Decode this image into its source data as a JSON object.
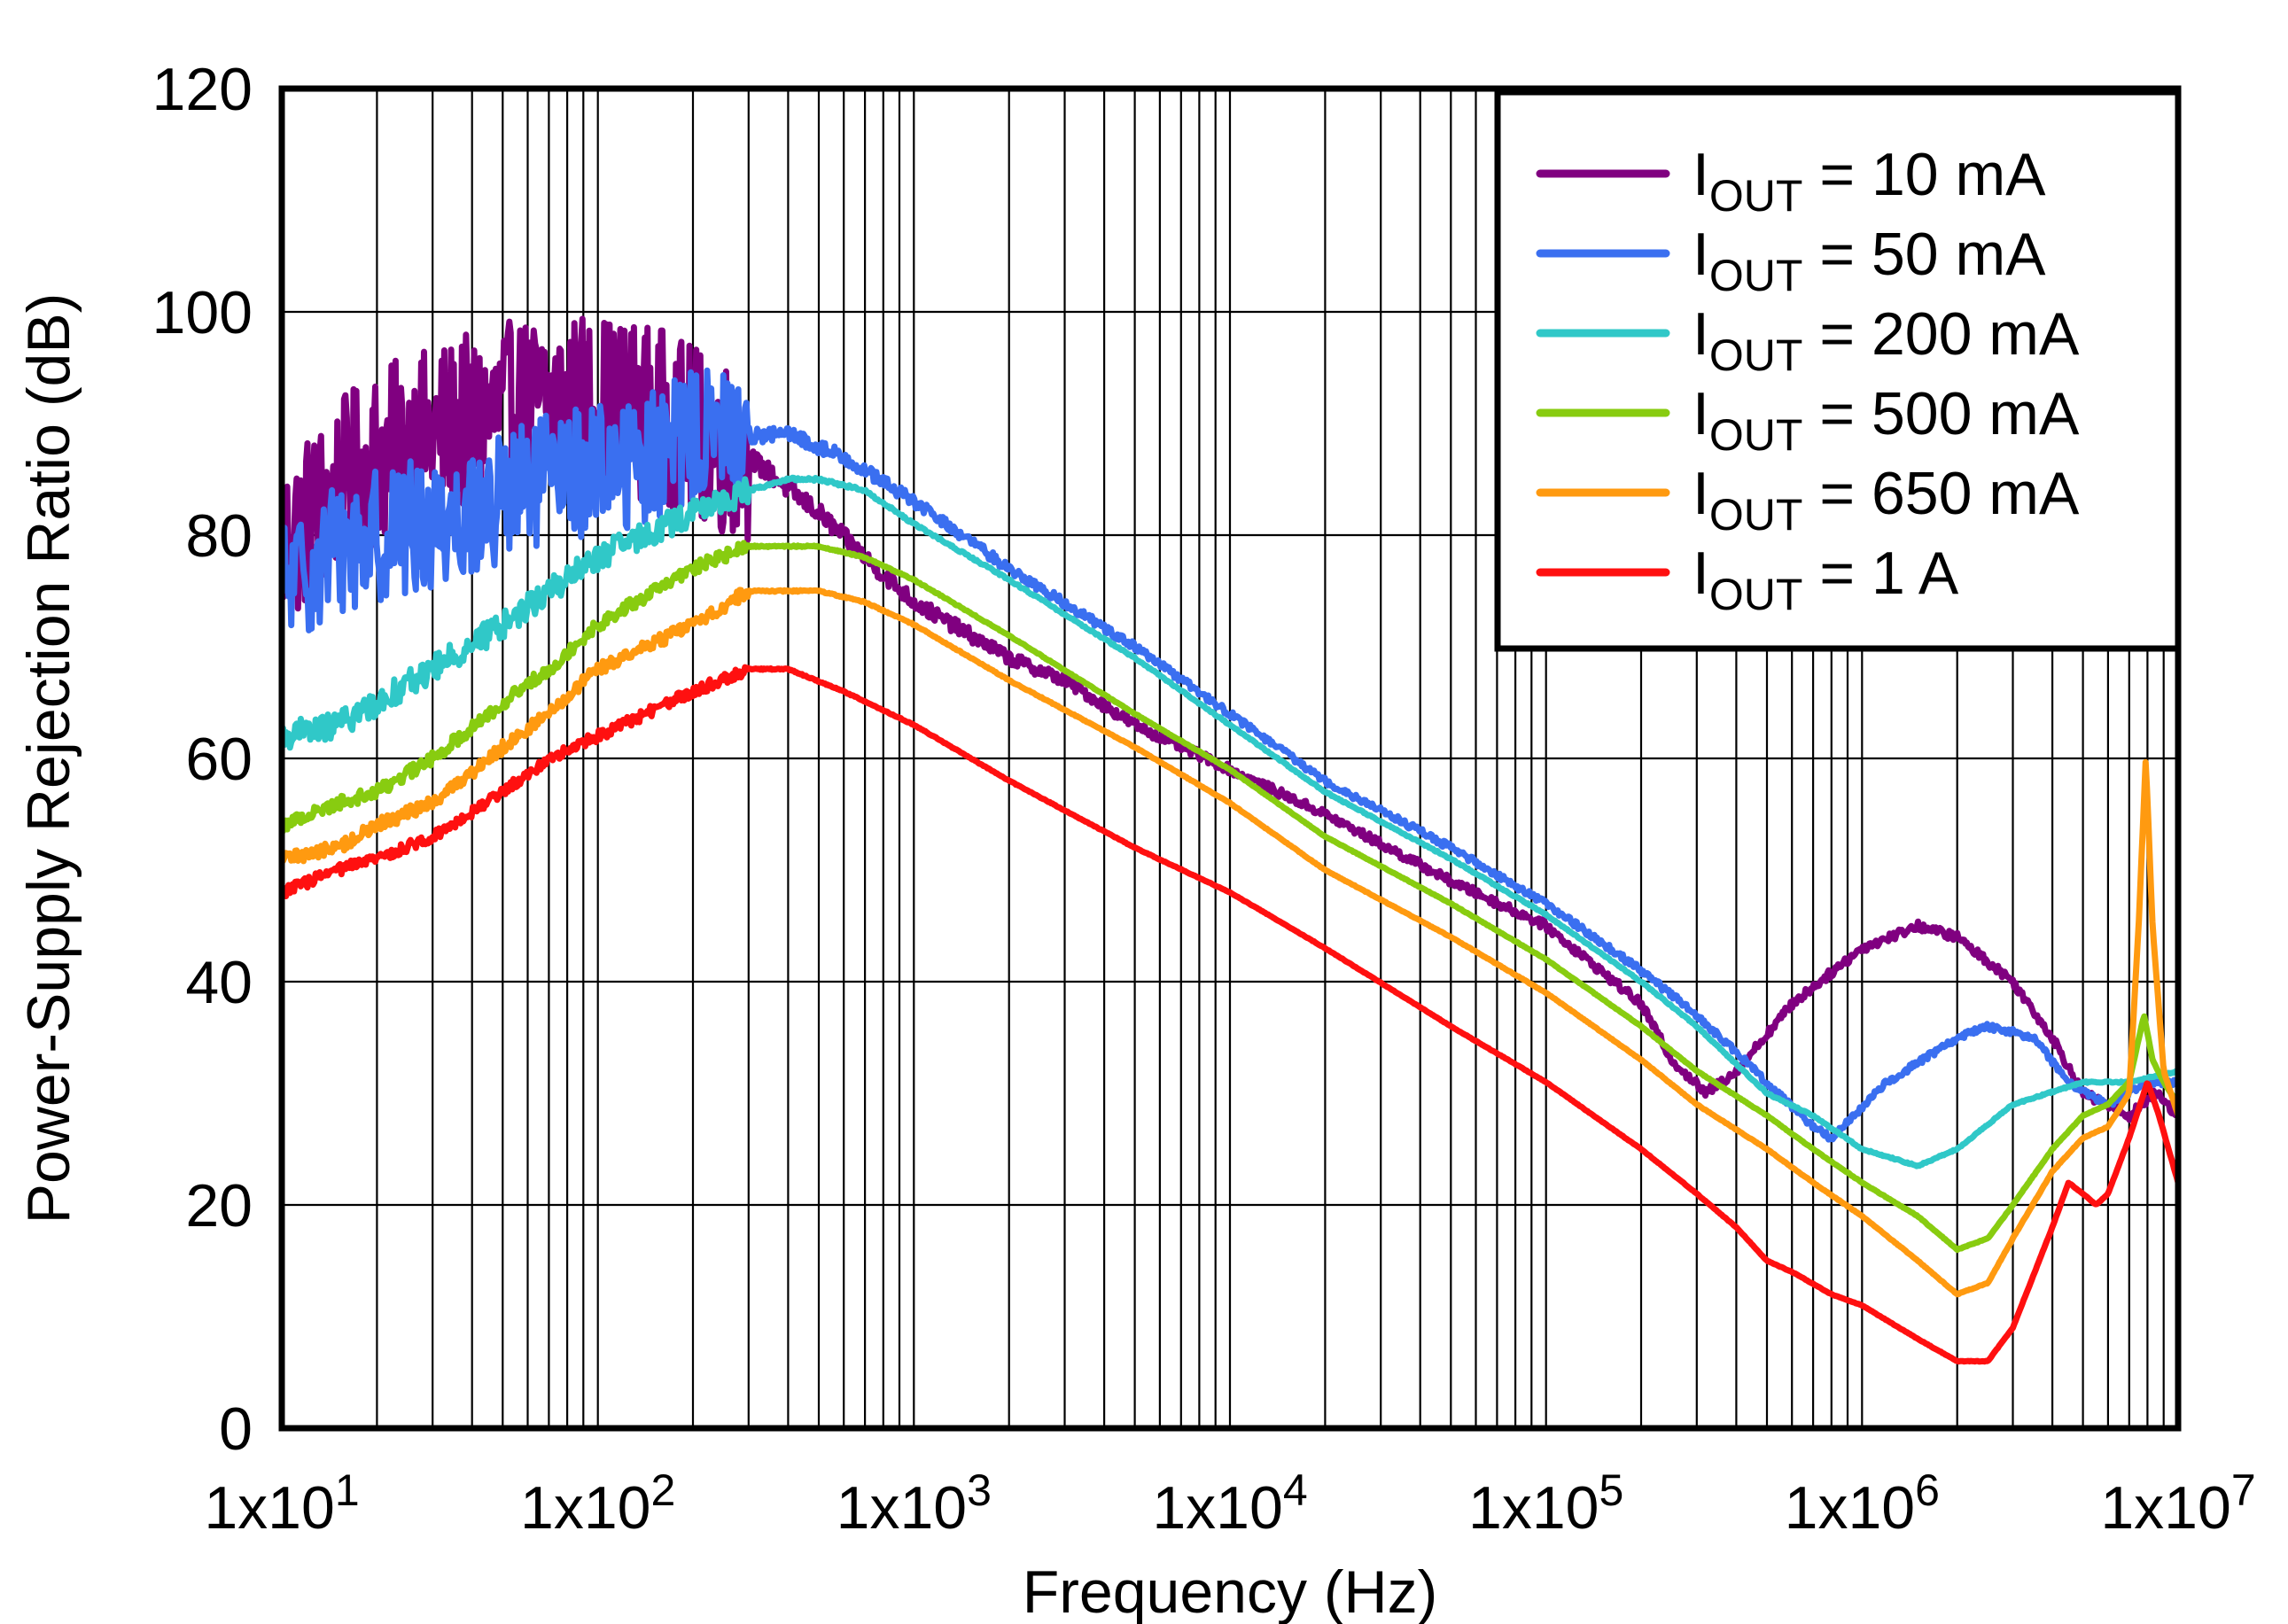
{
  "chart_data": {
    "type": "line",
    "title": "",
    "xlabel": "Frequency (Hz)",
    "ylabel": "Power-Supply Rejection Ratio (dB)",
    "x_scale": "log",
    "xlim": [
      10,
      10000000
    ],
    "ylim": [
      0,
      120
    ],
    "grid": true,
    "legend_position": "top-right",
    "x_ticks": [
      {
        "value": 10,
        "label": "1x10",
        "exp": "1"
      },
      {
        "value": 100,
        "label": "1x10",
        "exp": "2"
      },
      {
        "value": 1000,
        "label": "1x10",
        "exp": "3"
      },
      {
        "value": 10000,
        "label": "1x10",
        "exp": "4"
      },
      {
        "value": 100000,
        "label": "1x10",
        "exp": "5"
      },
      {
        "value": 1000000,
        "label": "1x10",
        "exp": "6"
      },
      {
        "value": 10000000,
        "label": "1x10",
        "exp": "7"
      }
    ],
    "y_ticks": [
      {
        "value": 0,
        "label": "0"
      },
      {
        "value": 20,
        "label": "20"
      },
      {
        "value": 40,
        "label": "40"
      },
      {
        "value": 60,
        "label": "60"
      },
      {
        "value": 80,
        "label": "80"
      },
      {
        "value": 100,
        "label": "100"
      },
      {
        "value": 120,
        "label": "120"
      }
    ],
    "series": [
      {
        "name": "IOUT = 10 mA",
        "legend": {
          "main": "I",
          "sub": "OUT",
          "rest": " = 10 mA"
        },
        "color": "#800080",
        "noise_amplitude": 8,
        "noise_until_hz": 300,
        "points": [
          [
            10,
            79
          ],
          [
            15,
            84
          ],
          [
            20,
            87
          ],
          [
            30,
            89
          ],
          [
            50,
            91
          ],
          [
            70,
            92
          ],
          [
            100,
            92
          ],
          [
            150,
            91
          ],
          [
            200,
            89
          ],
          [
            300,
            87
          ],
          [
            500,
            82
          ],
          [
            700,
            78
          ],
          [
            1000,
            74
          ],
          [
            2000,
            69
          ],
          [
            3000,
            67
          ],
          [
            5000,
            63
          ],
          [
            10000,
            59
          ],
          [
            20000,
            55
          ],
          [
            50000,
            49
          ],
          [
            100000,
            45
          ],
          [
            200000,
            38
          ],
          [
            250000,
            33
          ],
          [
            320000,
            30
          ],
          [
            400000,
            32
          ],
          [
            600000,
            38
          ],
          [
            1000000,
            43
          ],
          [
            1500000,
            45
          ],
          [
            2000000,
            44
          ],
          [
            3000000,
            40
          ],
          [
            4000000,
            35
          ],
          [
            5000000,
            30
          ],
          [
            7000000,
            28
          ],
          [
            8500000,
            30
          ],
          [
            10000000,
            28
          ]
        ]
      },
      {
        "name": "IOUT = 50 mA",
        "legend": {
          "main": "I",
          "sub": "OUT",
          "rest": " = 50 mA"
        },
        "color": "#3a6ff0",
        "noise_amplitude": 6,
        "noise_until_hz": 300,
        "points": [
          [
            10,
            75
          ],
          [
            15,
            79
          ],
          [
            20,
            80
          ],
          [
            30,
            81
          ],
          [
            50,
            83
          ],
          [
            70,
            85
          ],
          [
            100,
            86
          ],
          [
            150,
            87
          ],
          [
            200,
            89
          ],
          [
            300,
            89
          ],
          [
            400,
            89
          ],
          [
            600,
            87
          ],
          [
            1000,
            83
          ],
          [
            2000,
            77
          ],
          [
            5000,
            70
          ],
          [
            10000,
            64
          ],
          [
            20000,
            58
          ],
          [
            50000,
            52
          ],
          [
            100000,
            47
          ],
          [
            200000,
            41
          ],
          [
            300000,
            37
          ],
          [
            500000,
            31
          ],
          [
            700000,
            27
          ],
          [
            800000,
            26
          ],
          [
            1200000,
            31
          ],
          [
            2000000,
            35
          ],
          [
            2500000,
            36
          ],
          [
            3500000,
            35
          ],
          [
            4500000,
            31
          ],
          [
            6000000,
            29
          ],
          [
            8000000,
            31
          ],
          [
            10000000,
            31
          ]
        ]
      },
      {
        "name": "IOUT = 200 mA",
        "legend": {
          "main": "I",
          "sub": "OUT",
          "rest": " = 200 mA"
        },
        "color": "#30c8c8",
        "noise_amplitude": 1.2,
        "noise_until_hz": 300,
        "points": [
          [
            10,
            62
          ],
          [
            15,
            63
          ],
          [
            20,
            65
          ],
          [
            30,
            68
          ],
          [
            50,
            72
          ],
          [
            70,
            75
          ],
          [
            100,
            78
          ],
          [
            200,
            82
          ],
          [
            300,
            84
          ],
          [
            400,
            85
          ],
          [
            500,
            85
          ],
          [
            700,
            84
          ],
          [
            1000,
            81
          ],
          [
            2000,
            76
          ],
          [
            5000,
            69
          ],
          [
            10000,
            63
          ],
          [
            20000,
            57
          ],
          [
            50000,
            51
          ],
          [
            100000,
            46
          ],
          [
            200000,
            40
          ],
          [
            300000,
            36
          ],
          [
            500000,
            30
          ],
          [
            700000,
            28
          ],
          [
            1000000,
            25
          ],
          [
            1500000,
            23.5
          ],
          [
            2000000,
            25
          ],
          [
            3000000,
            29
          ],
          [
            5000000,
            31
          ],
          [
            7000000,
            31
          ],
          [
            10000000,
            32
          ]
        ]
      },
      {
        "name": "IOUT = 500 mA",
        "legend": {
          "main": "I",
          "sub": "OUT",
          "rest": " = 500 mA"
        },
        "color": "#88cc10",
        "noise_amplitude": 0.6,
        "noise_until_hz": 300,
        "points": [
          [
            10,
            54
          ],
          [
            15,
            56
          ],
          [
            20,
            57
          ],
          [
            30,
            60
          ],
          [
            50,
            65
          ],
          [
            70,
            68
          ],
          [
            100,
            72
          ],
          [
            200,
            77
          ],
          [
            300,
            79
          ],
          [
            500,
            79
          ],
          [
            700,
            78
          ],
          [
            1000,
            76
          ],
          [
            2000,
            71
          ],
          [
            5000,
            64
          ],
          [
            10000,
            59
          ],
          [
            20000,
            53
          ],
          [
            50000,
            47
          ],
          [
            100000,
            42
          ],
          [
            200000,
            36
          ],
          [
            300000,
            32
          ],
          [
            500000,
            28
          ],
          [
            700000,
            25
          ],
          [
            1000000,
            22
          ],
          [
            1500000,
            19
          ],
          [
            2000000,
            16
          ],
          [
            2500000,
            17
          ],
          [
            3000000,
            20
          ],
          [
            4000000,
            25
          ],
          [
            5000000,
            28
          ],
          [
            6000000,
            29
          ],
          [
            7000000,
            31
          ],
          [
            7800000,
            37
          ],
          [
            8300000,
            33
          ],
          [
            9000000,
            31
          ],
          [
            10000000,
            29
          ]
        ]
      },
      {
        "name": "IOUT = 650 mA",
        "legend": {
          "main": "I",
          "sub": "OUT",
          "rest": " = 650 mA"
        },
        "color": "#ff9a10",
        "noise_amplitude": 0.6,
        "noise_until_hz": 300,
        "points": [
          [
            10,
            51
          ],
          [
            15,
            52
          ],
          [
            20,
            54
          ],
          [
            30,
            56
          ],
          [
            50,
            61
          ],
          [
            70,
            64
          ],
          [
            100,
            68
          ],
          [
            200,
            72
          ],
          [
            300,
            75
          ],
          [
            500,
            75
          ],
          [
            700,
            74
          ],
          [
            1000,
            72
          ],
          [
            2000,
            67
          ],
          [
            5000,
            61
          ],
          [
            10000,
            56
          ],
          [
            20000,
            50
          ],
          [
            50000,
            44
          ],
          [
            100000,
            39
          ],
          [
            200000,
            33
          ],
          [
            300000,
            29
          ],
          [
            500000,
            25
          ],
          [
            700000,
            22
          ],
          [
            1000000,
            19
          ],
          [
            1500000,
            15
          ],
          [
            2000000,
            12
          ],
          [
            2500000,
            13
          ],
          [
            3000000,
            17
          ],
          [
            4000000,
            23
          ],
          [
            5000000,
            26
          ],
          [
            6000000,
            27
          ],
          [
            7000000,
            30
          ],
          [
            7500000,
            45
          ],
          [
            7900000,
            60
          ],
          [
            8300000,
            45
          ],
          [
            9000000,
            32
          ],
          [
            10000000,
            28
          ]
        ]
      },
      {
        "name": "IOUT = 1 A",
        "legend": {
          "main": "I",
          "sub": "OUT",
          "rest": " = 1 A"
        },
        "color": "#ff1010",
        "noise_amplitude": 0.5,
        "noise_until_hz": 300,
        "points": [
          [
            10,
            48
          ],
          [
            15,
            50
          ],
          [
            20,
            51
          ],
          [
            30,
            53
          ],
          [
            50,
            57
          ],
          [
            70,
            60
          ],
          [
            100,
            62
          ],
          [
            200,
            66
          ],
          [
            300,
            68
          ],
          [
            400,
            68
          ],
          [
            600,
            66
          ],
          [
            1000,
            63
          ],
          [
            2000,
            58
          ],
          [
            5000,
            52
          ],
          [
            10000,
            48
          ],
          [
            20000,
            43
          ],
          [
            50000,
            36
          ],
          [
            100000,
            31
          ],
          [
            200000,
            25
          ],
          [
            300000,
            21
          ],
          [
            400000,
            18
          ],
          [
            500000,
            15
          ],
          [
            600000,
            14
          ],
          [
            800000,
            12
          ],
          [
            1000000,
            11
          ],
          [
            1500000,
            8
          ],
          [
            2000000,
            6
          ],
          [
            2500000,
            6
          ],
          [
            3000000,
            9
          ],
          [
            4000000,
            18
          ],
          [
            4500000,
            22
          ],
          [
            5000000,
            21
          ],
          [
            5500000,
            20
          ],
          [
            6000000,
            21
          ],
          [
            7000000,
            26
          ],
          [
            8000000,
            31
          ],
          [
            8700000,
            28
          ],
          [
            10000000,
            22
          ]
        ]
      }
    ]
  }
}
